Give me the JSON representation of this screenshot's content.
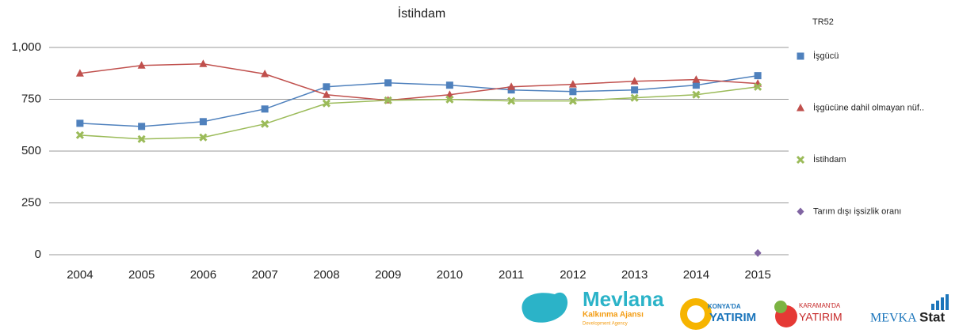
{
  "chart_data": {
    "type": "line",
    "title": "İstihdam",
    "legend_title": "TR52",
    "legend": "right",
    "categories": [
      "2004",
      "2005",
      "2006",
      "2007",
      "2008",
      "2009",
      "2010",
      "2011",
      "2012",
      "2013",
      "2014",
      "2015"
    ],
    "series": [
      {
        "name": "İşgücü",
        "color": "#4f81bd",
        "marker": "square",
        "values": [
          634,
          619,
          642,
          703,
          810,
          829,
          818,
          795,
          787,
          795,
          818,
          864
        ]
      },
      {
        "name": "İşgücüne dahil olmayan nüf..",
        "color": "#c0504d",
        "marker": "triangle",
        "values": [
          875,
          913,
          921,
          872,
          772,
          745,
          772,
          810,
          822,
          837,
          845,
          826
        ]
      },
      {
        "name": "İstihdam",
        "color": "#9bbb59",
        "marker": "x",
        "values": [
          577,
          558,
          566,
          631,
          730,
          745,
          749,
          742,
          742,
          757,
          772,
          810
        ]
      },
      {
        "name": "Tarım dışı işsizlik oranı",
        "color": "#8064a2",
        "marker": "diamond",
        "values": [
          null,
          null,
          null,
          null,
          null,
          null,
          null,
          null,
          null,
          null,
          null,
          8
        ]
      }
    ],
    "ylim": [
      0,
      1000
    ],
    "yticks": [
      0,
      250,
      500,
      750,
      {
        "value": 1000,
        "label": "1,000"
      }
    ],
    "grid": true
  },
  "logos": {
    "mevlana": "Mevlana",
    "mevlana_sub": "Kalkınma Ajansı",
    "mevlana_en": "Development Agency",
    "konya_top": "KONYA'DA",
    "konya_main": "YATIRIM",
    "karaman_top": "KARAMAN'DA",
    "karaman_main": "YATIRIM",
    "mevka": "MEVKA",
    "stat": "Stat"
  }
}
